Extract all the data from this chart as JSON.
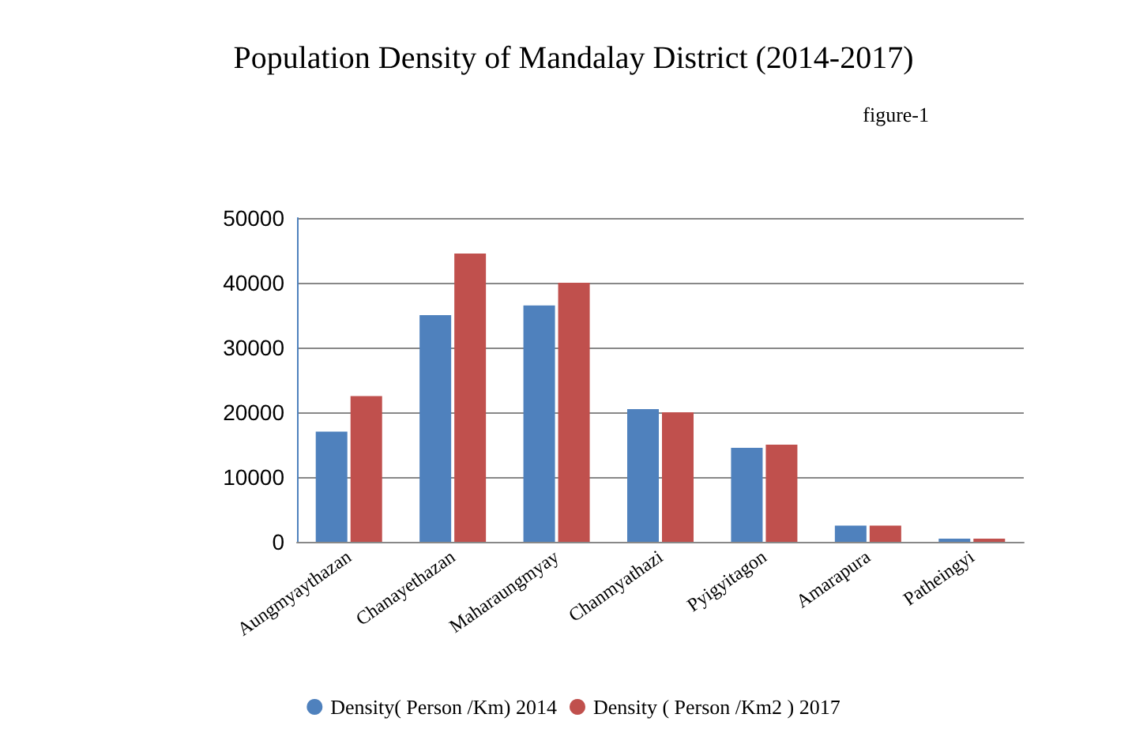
{
  "chart_data": {
    "type": "bar",
    "title": "Population Density of Mandalay District (2014-2017)",
    "annotations": [
      "figure-1"
    ],
    "categories": [
      "Aungmyaythazan",
      "Chanayethazan",
      "Maharaungmyay",
      "Chanmyathazi",
      "Pyigyitagon",
      "Amarapura",
      "Patheingyi"
    ],
    "series": [
      {
        "name": "Density( Person /Km) 2014",
        "color": "#4f81bd",
        "values": [
          17000,
          35000,
          36500,
          20500,
          14500,
          2500,
          500
        ]
      },
      {
        "name": "Density ( Person /Km2 ) 2017",
        "color": "#c0504d",
        "values": [
          22500,
          44500,
          40000,
          20000,
          15000,
          2500,
          500
        ]
      }
    ],
    "ylim": [
      0,
      50000
    ],
    "yticks": [
      0,
      10000,
      20000,
      30000,
      40000,
      50000
    ],
    "grid": "y",
    "legend": "bottom"
  }
}
